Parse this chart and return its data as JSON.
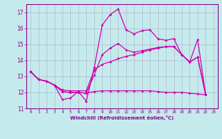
{
  "xlabel": "Windchill (Refroidissement éolien,°C)",
  "x_ticks": [
    0,
    1,
    2,
    3,
    4,
    5,
    6,
    7,
    8,
    9,
    10,
    11,
    12,
    13,
    14,
    15,
    16,
    17,
    18,
    19,
    20,
    21,
    22,
    23
  ],
  "ylim": [
    11,
    17.5
  ],
  "xlim": [
    -0.5,
    23.5
  ],
  "yticks": [
    11,
    12,
    13,
    14,
    15,
    16,
    17
  ],
  "background_color": "#c5eaec",
  "grid_color": "#b0b8d0",
  "line_color": "#cc00aa",
  "lines": [
    {
      "x": [
        0,
        1,
        2,
        3,
        4,
        5,
        6,
        7,
        8,
        9,
        10,
        11,
        12,
        13,
        14,
        15,
        16,
        17,
        18,
        19,
        20,
        21,
        22
      ],
      "y": [
        13.3,
        12.8,
        12.7,
        12.45,
        11.55,
        11.65,
        12.05,
        11.45,
        13.55,
        16.2,
        16.85,
        17.2,
        15.9,
        15.65,
        15.85,
        15.9,
        15.35,
        15.25,
        15.35,
        14.35,
        13.9,
        15.3,
        11.85
      ]
    },
    {
      "x": [
        0,
        1,
        2,
        3,
        4,
        5,
        6,
        7,
        8,
        9,
        10,
        11,
        12,
        13,
        14,
        15,
        16,
        17,
        18,
        19,
        20,
        21,
        22
      ],
      "y": [
        13.3,
        12.8,
        12.7,
        12.45,
        12.15,
        12.1,
        12.1,
        12.1,
        13.4,
        13.75,
        13.9,
        14.1,
        14.25,
        14.35,
        14.5,
        14.65,
        14.75,
        14.85,
        14.85,
        14.35,
        13.9,
        14.2,
        11.85
      ]
    },
    {
      "x": [
        0,
        1,
        2,
        3,
        4,
        5,
        6,
        7,
        8,
        9,
        10,
        11,
        12,
        13,
        14,
        15,
        16,
        17,
        18,
        19,
        20,
        21,
        22
      ],
      "y": [
        13.3,
        12.8,
        12.7,
        12.45,
        12.05,
        12.0,
        12.0,
        11.95,
        12.05,
        12.1,
        12.1,
        12.1,
        12.1,
        12.1,
        12.1,
        12.1,
        12.05,
        12.0,
        12.0,
        12.0,
        11.95,
        11.9,
        11.85
      ]
    },
    {
      "x": [
        0,
        1,
        2,
        3,
        4,
        5,
        6,
        7,
        8,
        9,
        10,
        11,
        12,
        13,
        14,
        15,
        16,
        17,
        18,
        19,
        20,
        21,
        22
      ],
      "y": [
        13.3,
        12.8,
        12.7,
        12.45,
        12.05,
        12.0,
        12.0,
        11.95,
        13.1,
        14.35,
        14.75,
        15.05,
        14.65,
        14.5,
        14.6,
        14.7,
        14.8,
        14.85,
        14.85,
        14.35,
        13.9,
        14.2,
        11.85
      ]
    }
  ]
}
